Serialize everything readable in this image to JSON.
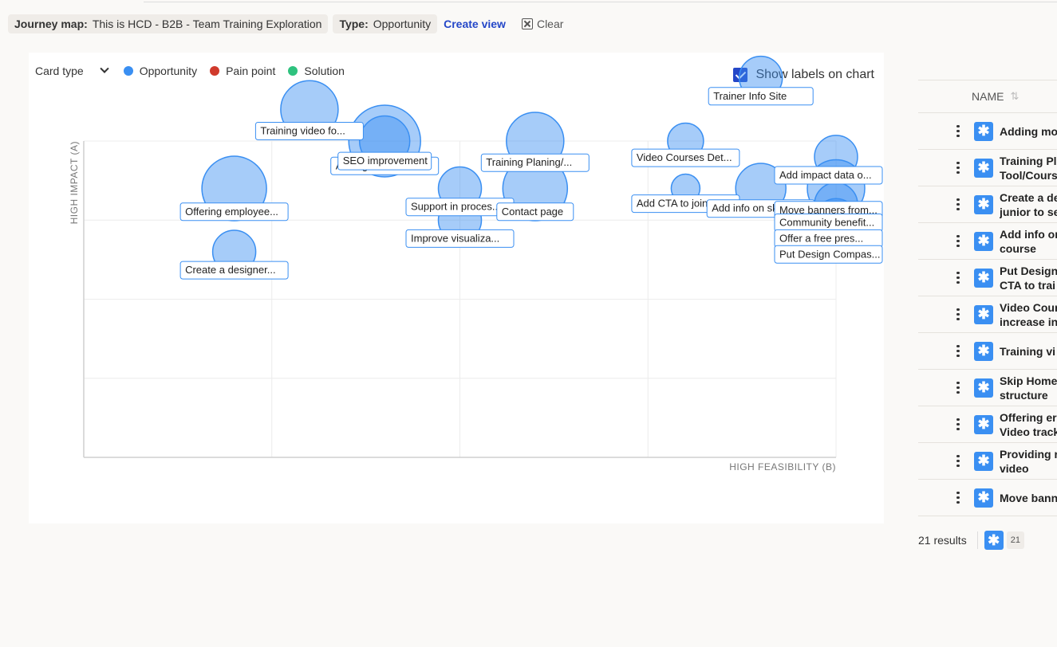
{
  "filters": {
    "journey_key": "Journey map:",
    "journey_value": "This is HCD - B2B - Team Training Exploration",
    "type_key": "Type:",
    "type_value": "Opportunity",
    "create_view": "Create view",
    "clear": "Clear"
  },
  "legend": {
    "card_type": "Card type",
    "items": [
      {
        "label": "Opportunity",
        "color": "#3a8ff2"
      },
      {
        "label": "Pain point",
        "color": "#d03a2c"
      },
      {
        "label": "Solution",
        "color": "#2ec27e"
      }
    ]
  },
  "show_labels": "Show labels on chart",
  "chart_data": {
    "type": "scatter",
    "xlabel": "HIGH FEASIBILITY (B)",
    "ylabel": "HIGH IMPACT (A)",
    "grid": true,
    "series_color": "#3a8ff2",
    "note": "bubble positions/sizes are relative; axis has no numeric ticks",
    "points": [
      {
        "label": "Training video fo...",
        "x": 1.2,
        "y": 4.4,
        "size": 40
      },
      {
        "label": "Adding more Live ...",
        "x": 1.6,
        "y": 4.0,
        "size": 50
      },
      {
        "label": "SEO improvement",
        "x": 1.6,
        "y": 4.0,
        "size": 35
      },
      {
        "label": "Offering employee...",
        "x": 0.8,
        "y": 3.4,
        "size": 45
      },
      {
        "label": "Create a designer...",
        "x": 0.8,
        "y": 2.6,
        "size": 30
      },
      {
        "label": "Support in proces...",
        "x": 2.0,
        "y": 3.4,
        "size": 30
      },
      {
        "label": "Improve visualiza...",
        "x": 2.0,
        "y": 3.0,
        "size": 30
      },
      {
        "label": "Training Planing/...",
        "x": 2.4,
        "y": 4.0,
        "size": 40
      },
      {
        "label": "Contact page",
        "x": 2.4,
        "y": 3.4,
        "size": 45
      },
      {
        "label": "Trainer Info Site",
        "x": 3.6,
        "y": 4.8,
        "size": 30
      },
      {
        "label": "Video Courses Det...",
        "x": 3.2,
        "y": 4.0,
        "size": 25
      },
      {
        "label": "Add CTA to join C...",
        "x": 3.2,
        "y": 3.4,
        "size": 20
      },
      {
        "label": "Add info on skill...",
        "x": 3.6,
        "y": 3.4,
        "size": 35
      },
      {
        "label": "Add impact data o...",
        "x": 4.0,
        "y": 3.8,
        "size": 30
      },
      {
        "label": "Move banners from...",
        "x": 4.0,
        "y": 3.4,
        "size": 40
      },
      {
        "label": "Community benefit...",
        "x": 4.0,
        "y": 3.2,
        "size": 30
      },
      {
        "label": "Offer a free pres...",
        "x": 4.0,
        "y": 3.0,
        "size": 30
      },
      {
        "label": "Put Design Compas...",
        "x": 4.0,
        "y": 2.8,
        "size": 30
      }
    ]
  },
  "table": {
    "header": "NAME",
    "rows": [
      {
        "name": "Adding mo"
      },
      {
        "name": "Training Pl\nTool/Cours"
      },
      {
        "name": "Create a de\njunior to se"
      },
      {
        "name": "Add info or\ncourse"
      },
      {
        "name": "Put Design\nCTA to trai"
      },
      {
        "name": "Video Cour\nincrease in"
      },
      {
        "name": "Training vi"
      },
      {
        "name": "Skip Home\nstructure"
      },
      {
        "name": "Offering er\nVideo track"
      },
      {
        "name": "Providing r\nvideo"
      },
      {
        "name": "Move bann"
      }
    ],
    "results_label": "21 results",
    "results_count": "21"
  }
}
